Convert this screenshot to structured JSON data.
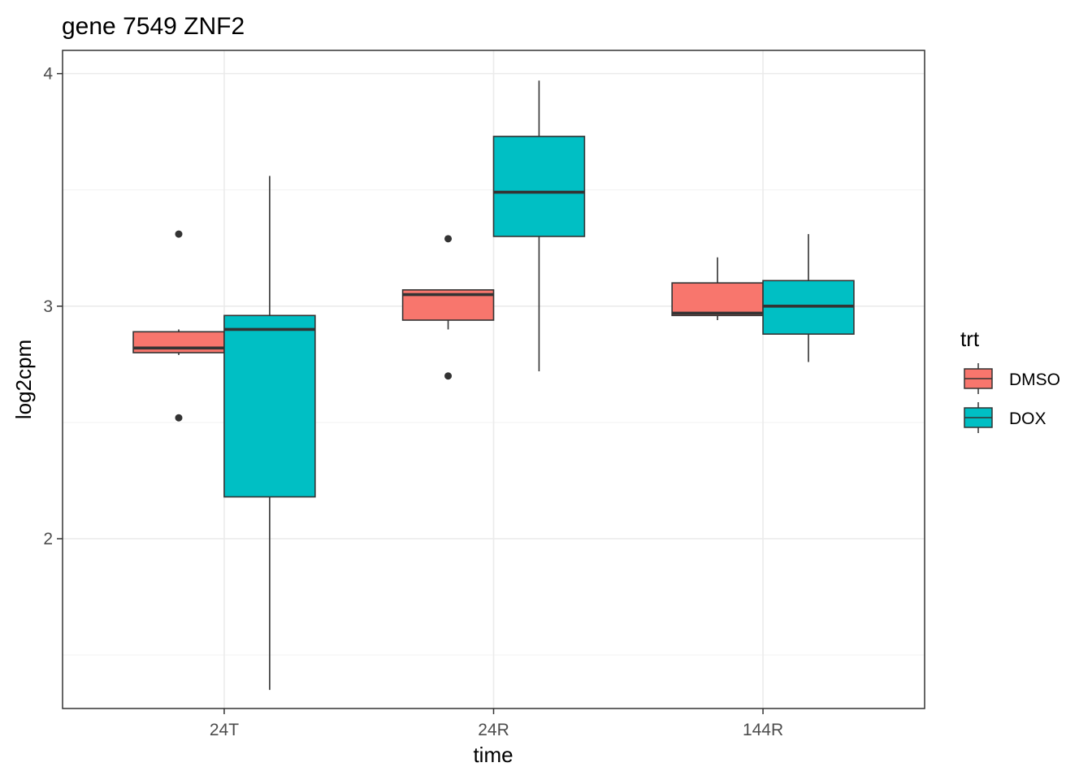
{
  "chart_data": {
    "type": "boxplot",
    "title": "gene 7549 ZNF2",
    "xlabel": "time",
    "ylabel": "log2cpm",
    "categories": [
      "24T",
      "24R",
      "144R"
    ],
    "ylim": [
      1.27,
      4.1
    ],
    "yticks": [
      2,
      3,
      4
    ],
    "grid": true,
    "legend": {
      "title": "trt",
      "placement": "right",
      "entries": [
        {
          "name": "DMSO",
          "color": "#F8766D"
        },
        {
          "name": "DOX",
          "color": "#00BFC4"
        }
      ]
    },
    "series": [
      {
        "name": "DMSO",
        "color": "#F8766D",
        "boxes": [
          {
            "category": "24T",
            "whisker_low": 2.79,
            "q1": 2.8,
            "median": 2.82,
            "q3": 2.89,
            "whisker_high": 2.9,
            "outliers": [
              3.31,
              2.52
            ]
          },
          {
            "category": "24R",
            "whisker_low": 2.9,
            "q1": 2.94,
            "median": 3.05,
            "q3": 3.07,
            "whisker_high": 3.07,
            "outliers": [
              3.29,
              2.7
            ]
          },
          {
            "category": "144R",
            "whisker_low": 2.94,
            "q1": 2.96,
            "median": 2.97,
            "q3": 3.1,
            "whisker_high": 3.21,
            "outliers": []
          }
        ]
      },
      {
        "name": "DOX",
        "color": "#00BFC4",
        "boxes": [
          {
            "category": "24T",
            "whisker_low": 1.35,
            "q1": 2.18,
            "median": 2.9,
            "q3": 2.96,
            "whisker_high": 3.56,
            "outliers": []
          },
          {
            "category": "24R",
            "whisker_low": 2.72,
            "q1": 3.3,
            "median": 3.49,
            "q3": 3.73,
            "whisker_high": 3.97,
            "outliers": []
          },
          {
            "category": "144R",
            "whisker_low": 2.76,
            "q1": 2.88,
            "median": 3.0,
            "q3": 3.11,
            "whisker_high": 3.31,
            "outliers": []
          }
        ]
      }
    ]
  }
}
